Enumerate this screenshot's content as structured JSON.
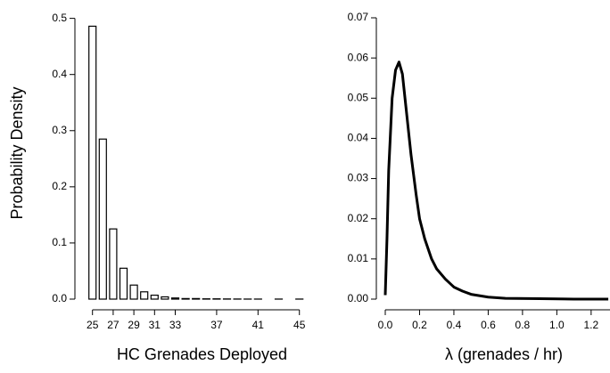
{
  "chart_data": [
    {
      "type": "bar",
      "xlabel": "HC Grenades Deployed",
      "ylabel": "Probability Density",
      "x": [
        25,
        26,
        27,
        28,
        29,
        30,
        31,
        32,
        33,
        34,
        35,
        36,
        37,
        38,
        39,
        40,
        41,
        42,
        43,
        44,
        45
      ],
      "values": [
        0.486,
        0.285,
        0.125,
        0.055,
        0.025,
        0.013,
        0.007,
        0.004,
        0.002,
        0.001,
        0.001,
        0.0005,
        0.0005,
        0.0003,
        0.0002,
        0.0001,
        0.0001,
        0,
        0.0001,
        0,
        0.0001
      ],
      "color": "#000000",
      "xlim": [
        23.5,
        45.8
      ],
      "xticks": [
        25,
        27,
        29,
        31,
        33,
        37,
        41,
        45
      ],
      "ylim": [
        0,
        0.52
      ],
      "yticks": [
        {
          "value": 0,
          "label": "0.0"
        },
        0.1,
        0.2,
        0.3,
        0.4,
        0.5
      ]
    },
    {
      "type": "line",
      "xlabel": "λ  (grenades / hr)",
      "x": [
        0.0,
        0.01,
        0.02,
        0.04,
        0.06,
        0.08,
        0.1,
        0.12,
        0.15,
        0.18,
        0.2,
        0.23,
        0.27,
        0.3,
        0.35,
        0.4,
        0.45,
        0.5,
        0.6,
        0.7,
        0.9,
        1.1,
        1.3
      ],
      "values": [
        0.001,
        0.015,
        0.032,
        0.05,
        0.057,
        0.059,
        0.056,
        0.048,
        0.036,
        0.026,
        0.02,
        0.015,
        0.01,
        0.0075,
        0.005,
        0.003,
        0.002,
        0.0012,
        0.0005,
        0.0002,
        0.0001,
        0,
        0
      ],
      "color": "#000000",
      "xlim": [
        0,
        1.31
      ],
      "xticks": [
        {
          "value": 0,
          "label": "0.0"
        },
        0.2,
        0.4,
        0.6,
        0.8,
        {
          "value": 1,
          "label": "1.0"
        },
        1.2
      ],
      "ylim": [
        0,
        0.07
      ],
      "yticks": [
        {
          "value": 0,
          "label": "0.00"
        },
        {
          "value": 0.01,
          "label": "0.01"
        },
        {
          "value": 0.02,
          "label": "0.02"
        },
        {
          "value": 0.03,
          "label": "0.03"
        },
        {
          "value": 0.04,
          "label": "0.04"
        },
        {
          "value": 0.05,
          "label": "0.05"
        },
        {
          "value": 0.06,
          "label": "0.06"
        },
        {
          "value": 0.07,
          "label": "0.07"
        }
      ]
    }
  ]
}
